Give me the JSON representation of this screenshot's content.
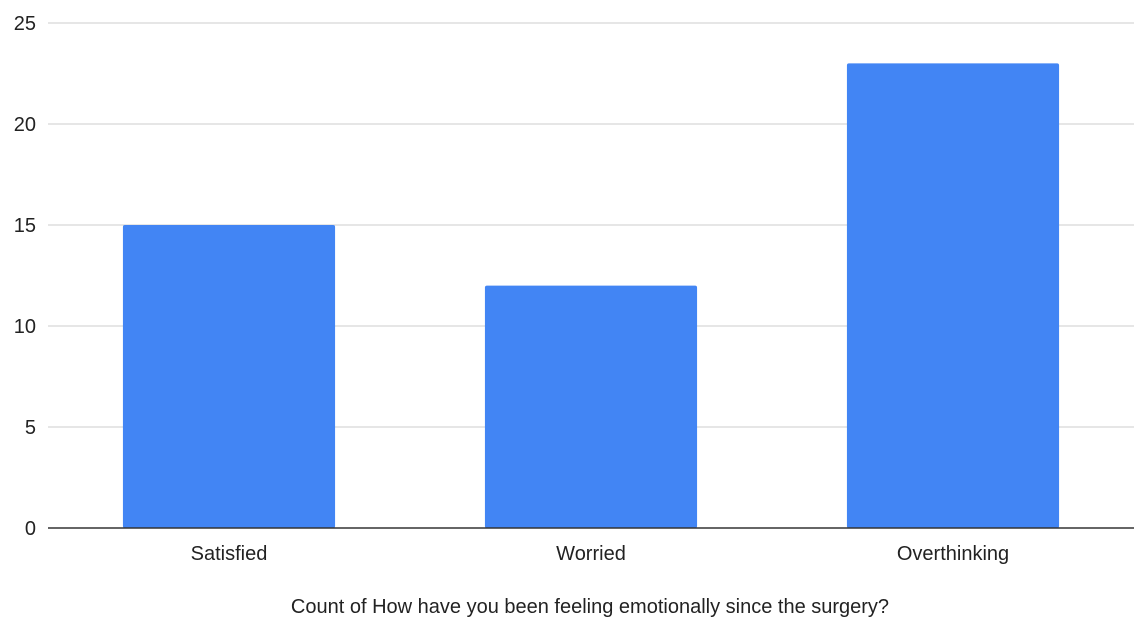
{
  "chart_data": {
    "type": "bar",
    "title": "",
    "xlabel": "Count of How have you been feeling emotionally since the surgery?",
    "ylabel": "",
    "categories": [
      "Satisfied",
      "Worried",
      "Overthinking"
    ],
    "values": [
      15,
      12,
      23
    ],
    "ylim": [
      0,
      25
    ],
    "yticks": [
      0,
      5,
      10,
      15,
      20,
      25
    ],
    "grid": true,
    "legend": "none",
    "colors": {
      "bar": "#4285f4",
      "grid": "#cccccc",
      "axis": "#333333"
    }
  }
}
